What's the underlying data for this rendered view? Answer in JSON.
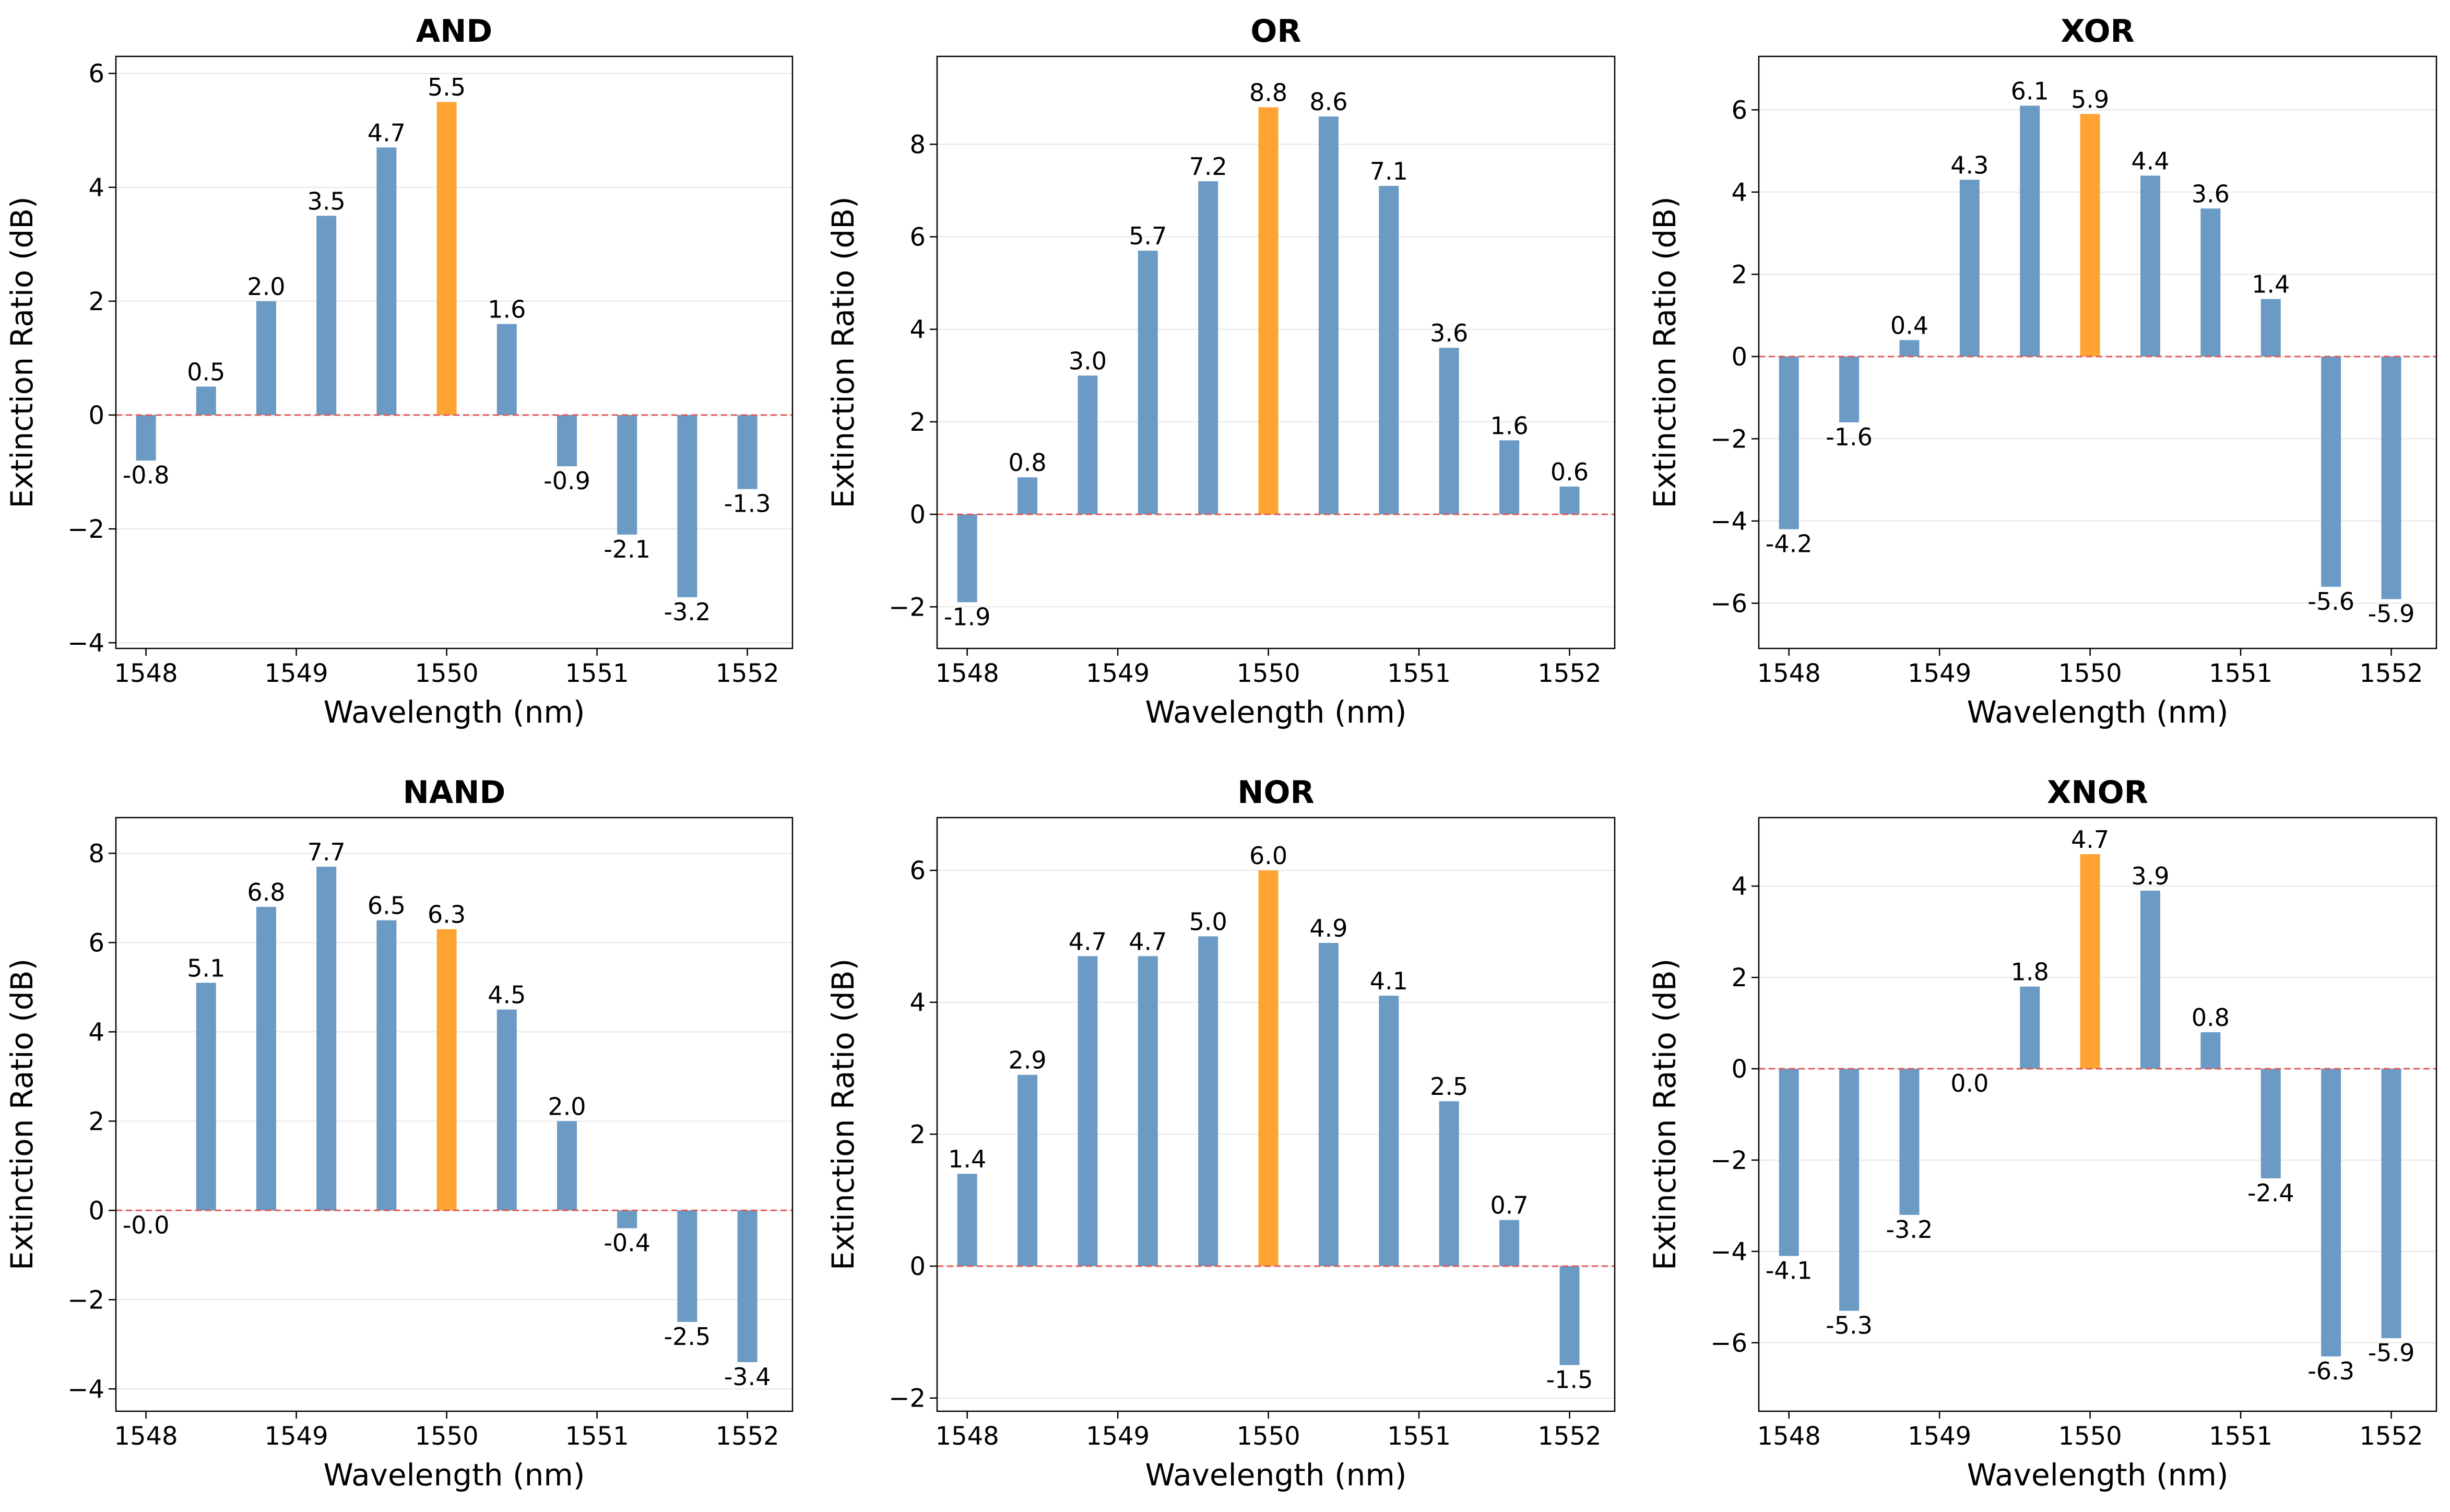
{
  "colors": {
    "bar": "#6b9ac4",
    "highlight_bar": "#ffa333",
    "zero_line": "#e05a5a",
    "grid": "#e6e6e6",
    "axes": "#000000"
  },
  "chart_data": [
    {
      "type": "bar",
      "title": "AND",
      "xlabel": "Wavelength (nm)",
      "ylabel": "Extinction Ratio (dB)",
      "x": [
        1548.0,
        1548.4,
        1548.8,
        1549.2,
        1549.6,
        1550.0,
        1550.4,
        1550.8,
        1551.2,
        1551.6,
        1552.0
      ],
      "values": [
        -0.8,
        0.5,
        2.0,
        3.5,
        4.7,
        5.5,
        1.6,
        -0.9,
        -2.1,
        -3.2,
        -1.3
      ],
      "labels": [
        "-0.8",
        "0.5",
        "2.0",
        "3.5",
        "4.7",
        "5.5",
        "1.6",
        "-0.9",
        "-2.1",
        "-3.2",
        "-1.3"
      ],
      "highlight_x": 1550.0,
      "xlim": [
        1547.8,
        1552.3
      ],
      "ylim": [
        -4.1,
        6.3
      ],
      "xticks": [
        1548,
        1549,
        1550,
        1551,
        1552
      ],
      "xtick_labels": [
        "1548",
        "1549",
        "1550",
        "1551",
        "1552"
      ],
      "yticks": [
        -4,
        -2,
        0,
        2,
        4,
        6
      ],
      "ytick_labels": [
        "−4",
        "−2",
        "0",
        "2",
        "4",
        "6"
      ],
      "grid": "horizontal"
    },
    {
      "type": "bar",
      "title": "OR",
      "xlabel": "Wavelength (nm)",
      "ylabel": "Extinction Ratio (dB)",
      "x": [
        1548.0,
        1548.4,
        1548.8,
        1549.2,
        1549.6,
        1550.0,
        1550.4,
        1550.8,
        1551.2,
        1551.6,
        1552.0
      ],
      "values": [
        -1.9,
        0.8,
        3.0,
        5.7,
        7.2,
        8.8,
        8.6,
        7.1,
        3.6,
        1.6,
        0.6
      ],
      "labels": [
        "-1.9",
        "0.8",
        "3.0",
        "5.7",
        "7.2",
        "8.8",
        "8.6",
        "7.1",
        "3.6",
        "1.6",
        "0.6"
      ],
      "highlight_x": 1550.0,
      "xlim": [
        1547.8,
        1552.3
      ],
      "ylim": [
        -2.9,
        9.9
      ],
      "xticks": [
        1548,
        1549,
        1550,
        1551,
        1552
      ],
      "xtick_labels": [
        "1548",
        "1549",
        "1550",
        "1551",
        "1552"
      ],
      "yticks": [
        -2,
        0,
        2,
        4,
        6,
        8
      ],
      "ytick_labels": [
        "−2",
        "0",
        "2",
        "4",
        "6",
        "8"
      ],
      "grid": "horizontal"
    },
    {
      "type": "bar",
      "title": "XOR",
      "xlabel": "Wavelength (nm)",
      "ylabel": "Extinction Ratio (dB)",
      "x": [
        1548.0,
        1548.4,
        1548.8,
        1549.2,
        1549.6,
        1550.0,
        1550.4,
        1550.8,
        1551.2,
        1551.6,
        1552.0
      ],
      "values": [
        -4.2,
        -1.6,
        0.4,
        4.3,
        6.1,
        5.9,
        4.4,
        3.6,
        1.4,
        -5.6,
        -5.9
      ],
      "labels": [
        "-4.2",
        "-1.6",
        "0.4",
        "4.3",
        "6.1",
        "5.9",
        "4.4",
        "3.6",
        "1.4",
        "-5.6",
        "-5.9"
      ],
      "highlight_x": 1550.0,
      "xlim": [
        1547.8,
        1552.3
      ],
      "ylim": [
        -7.1,
        7.3
      ],
      "xticks": [
        1548,
        1549,
        1550,
        1551,
        1552
      ],
      "xtick_labels": [
        "1548",
        "1549",
        "1550",
        "1551",
        "1552"
      ],
      "yticks": [
        -6,
        -4,
        -2,
        0,
        2,
        4,
        6
      ],
      "ytick_labels": [
        "−6",
        "−4",
        "−2",
        "0",
        "2",
        "4",
        "6"
      ],
      "grid": "horizontal"
    },
    {
      "type": "bar",
      "title": "NAND",
      "xlabel": "Wavelength (nm)",
      "ylabel": "Extinction Ratio (dB)",
      "x": [
        1548.0,
        1548.4,
        1548.8,
        1549.2,
        1549.6,
        1550.0,
        1550.4,
        1550.8,
        1551.2,
        1551.6,
        1552.0
      ],
      "values": [
        0.0,
        5.1,
        6.8,
        7.7,
        6.5,
        6.3,
        4.5,
        2.0,
        -0.4,
        -2.5,
        -3.4
      ],
      "labels": [
        "-0.0",
        "5.1",
        "6.8",
        "7.7",
        "6.5",
        "6.3",
        "4.5",
        "2.0",
        "-0.4",
        "-2.5",
        "-3.4"
      ],
      "highlight_x": 1550.0,
      "xlim": [
        1547.8,
        1552.3
      ],
      "ylim": [
        -4.5,
        8.8
      ],
      "xticks": [
        1548,
        1549,
        1550,
        1551,
        1552
      ],
      "xtick_labels": [
        "1548",
        "1549",
        "1550",
        "1551",
        "1552"
      ],
      "yticks": [
        -4,
        -2,
        0,
        2,
        4,
        6,
        8
      ],
      "ytick_labels": [
        "−4",
        "−2",
        "0",
        "2",
        "4",
        "6",
        "8"
      ],
      "grid": "horizontal"
    },
    {
      "type": "bar",
      "title": "NOR",
      "xlabel": "Wavelength (nm)",
      "ylabel": "Extinction Ratio (dB)",
      "x": [
        1548.0,
        1548.4,
        1548.8,
        1549.2,
        1549.6,
        1550.0,
        1550.4,
        1550.8,
        1551.2,
        1551.6,
        1552.0
      ],
      "values": [
        1.4,
        2.9,
        4.7,
        4.7,
        5.0,
        6.0,
        4.9,
        4.1,
        2.5,
        0.7,
        -1.5
      ],
      "labels": [
        "1.4",
        "2.9",
        "4.7",
        "4.7",
        "5.0",
        "6.0",
        "4.9",
        "4.1",
        "2.5",
        "0.7",
        "-1.5"
      ],
      "highlight_x": 1550.0,
      "xlim": [
        1547.8,
        1552.3
      ],
      "ylim": [
        -2.2,
        6.8
      ],
      "xticks": [
        1548,
        1549,
        1550,
        1551,
        1552
      ],
      "xtick_labels": [
        "1548",
        "1549",
        "1550",
        "1551",
        "1552"
      ],
      "yticks": [
        -2,
        0,
        2,
        4,
        6
      ],
      "ytick_labels": [
        "−2",
        "0",
        "2",
        "4",
        "6"
      ],
      "grid": "horizontal"
    },
    {
      "type": "bar",
      "title": "XNOR",
      "xlabel": "Wavelength (nm)",
      "ylabel": "Extinction Ratio (dB)",
      "x": [
        1548.0,
        1548.4,
        1548.8,
        1549.2,
        1549.6,
        1550.0,
        1550.4,
        1550.8,
        1551.2,
        1551.6,
        1552.0
      ],
      "values": [
        -4.1,
        -5.3,
        -3.2,
        0.0,
        1.8,
        4.7,
        3.9,
        0.8,
        -2.4,
        -6.3,
        -5.9
      ],
      "labels": [
        "-4.1",
        "-5.3",
        "-3.2",
        "0.0",
        "1.8",
        "4.7",
        "3.9",
        "0.8",
        "-2.4",
        "-6.3",
        "-5.9"
      ],
      "highlight_x": 1550.0,
      "xlim": [
        1547.8,
        1552.3
      ],
      "ylim": [
        -7.5,
        5.5
      ],
      "xticks": [
        1548,
        1549,
        1550,
        1551,
        1552
      ],
      "xtick_labels": [
        "1548",
        "1549",
        "1550",
        "1551",
        "1552"
      ],
      "yticks": [
        -6,
        -4,
        -2,
        0,
        2,
        4
      ],
      "ytick_labels": [
        "−6",
        "−4",
        "−2",
        "0",
        "2",
        "4"
      ],
      "grid": "horizontal"
    }
  ]
}
